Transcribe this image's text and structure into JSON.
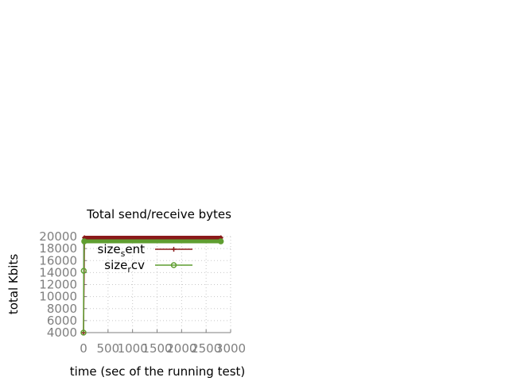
{
  "chart_data": {
    "type": "line",
    "title": "Total send/receive bytes",
    "xlabel": "time (sec of the running test)",
    "ylabel": "total Kbits",
    "xlim": [
      0,
      3000
    ],
    "ylim": [
      4000,
      20000
    ],
    "xticks": [
      "0",
      "500",
      "1000",
      "1500",
      "2000",
      "2500",
      "3000"
    ],
    "yticks": [
      "4000",
      "6000",
      "8000",
      "10000",
      "12000",
      "14000",
      "16000",
      "18000",
      "20000"
    ],
    "grid": true,
    "legend_position": "top-right",
    "series": [
      {
        "name": "size_sent",
        "name_base1": "size",
        "name_sub": "s",
        "name_rest": "ent",
        "color": "#8b1a1a",
        "marker": "plus",
        "x": [
          0,
          20,
          2800
        ],
        "y": [
          4000,
          19800,
          19800
        ]
      },
      {
        "name": "size_rcv",
        "name_base1": "size",
        "name_sub": "r",
        "name_rest": "cv",
        "color": "#5f9e30",
        "marker": "circle",
        "x": [
          0,
          5,
          15,
          2800
        ],
        "y": [
          4000,
          14300,
          19200,
          19200
        ]
      }
    ]
  }
}
